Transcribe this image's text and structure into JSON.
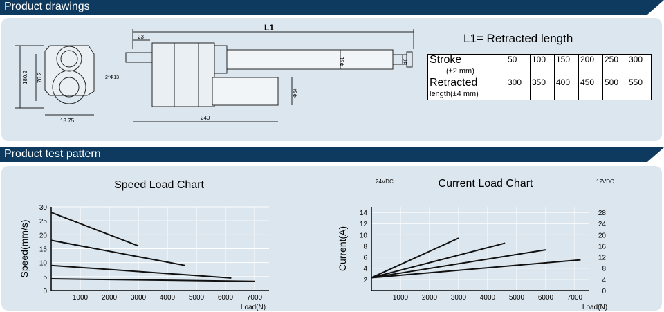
{
  "sections": {
    "drawings_title": "Product drawings",
    "test_title": "Product test pattern"
  },
  "drawing": {
    "dims": {
      "l1": "L1",
      "d23": "23",
      "d180_2": "180.2",
      "d76_2": "76.2",
      "hole": "2*Φ13",
      "d18_75": "18.75",
      "d240": "240",
      "d51": "Φ51",
      "d64": "Φ64",
      "d8": "Φ8"
    }
  },
  "spec": {
    "formula": "L1= Retracted length",
    "stroke_label": "Stroke",
    "stroke_tol": "(±2 mm)",
    "retracted_label": "Retracted",
    "retracted_label2": "length",
    "retracted_tol": "(±4 mm)",
    "stroke_values": [
      "50",
      "100",
      "150",
      "200",
      "250",
      "300"
    ],
    "retracted_values": [
      "300",
      "350",
      "400",
      "450",
      "500",
      "550"
    ]
  },
  "chart_data": [
    {
      "type": "line",
      "title": "Speed Load Chart",
      "xlabel": "Load(N)",
      "ylabel": "Speed(mm/s)",
      "xlim": [
        0,
        7500
      ],
      "ylim": [
        0,
        30
      ],
      "xticks": [
        "1000",
        "2000",
        "3000",
        "4000",
        "5000",
        "6000",
        "7000"
      ],
      "yticks": [
        "0",
        "5",
        "10",
        "15",
        "20",
        "25",
        "30"
      ],
      "grid": true,
      "series": [
        {
          "points": [
            [
              0,
              28
            ],
            [
              3000,
              16
            ]
          ]
        },
        {
          "points": [
            [
              0,
              18
            ],
            [
              4600,
              9
            ]
          ]
        },
        {
          "points": [
            [
              0,
              9
            ],
            [
              6200,
              4.5
            ]
          ]
        },
        {
          "points": [
            [
              0,
              4.2
            ],
            [
              7000,
              3.3
            ]
          ]
        }
      ]
    },
    {
      "type": "line",
      "title": "Current Load Chart",
      "xlabel": "Load(N)",
      "ylabel": "Current(A)",
      "y2_label": "12VDC",
      "y1_label": "24VDC",
      "xlim": [
        0,
        7500
      ],
      "ylim": [
        0,
        15
      ],
      "y2lim": [
        0,
        30
      ],
      "xticks": [
        "1000",
        "2000",
        "3000",
        "4000",
        "5000",
        "6000",
        "7000"
      ],
      "yticks": [
        "2",
        "4",
        "6",
        "8",
        "10",
        "12",
        "14"
      ],
      "y2ticks": [
        "0",
        "4",
        "8",
        "12",
        "16",
        "20",
        "24",
        "28"
      ],
      "grid": true,
      "series": [
        {
          "points": [
            [
              0,
              2.3
            ],
            [
              3000,
              9.4
            ]
          ]
        },
        {
          "points": [
            [
              0,
              2.3
            ],
            [
              4600,
              8.5
            ]
          ]
        },
        {
          "points": [
            [
              0,
              2.3
            ],
            [
              6000,
              7.3
            ]
          ]
        },
        {
          "points": [
            [
              0,
              2.3
            ],
            [
              7200,
              5.5
            ]
          ]
        }
      ]
    }
  ]
}
